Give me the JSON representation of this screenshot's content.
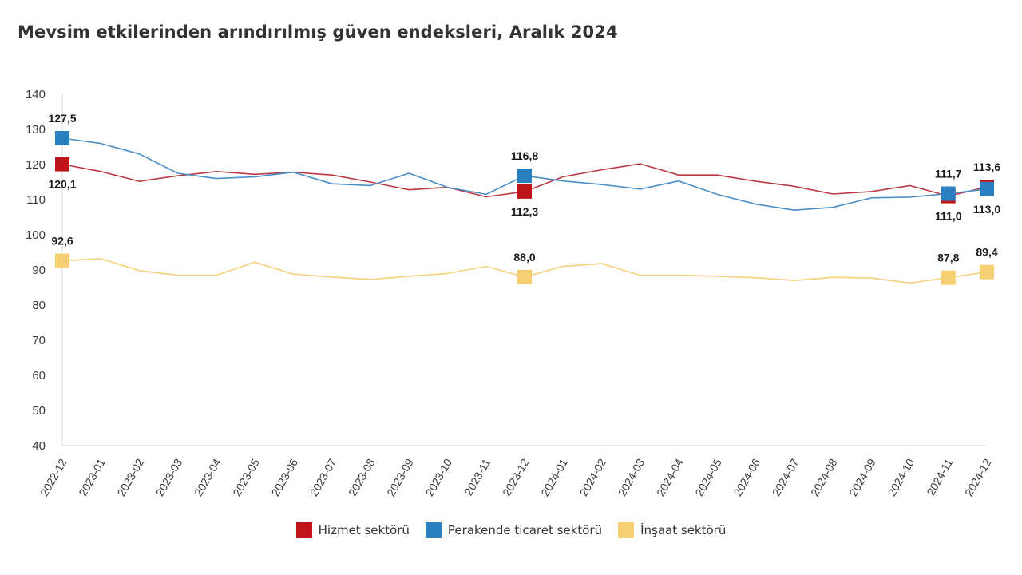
{
  "chart_data": {
    "type": "line",
    "title": "Mevsim etkilerinden arındırılmış güven endeksleri, Aralık 2024",
    "xlabel": "",
    "ylabel": "",
    "ylim": [
      40,
      140
    ],
    "yticks": [
      "40",
      "50",
      "60",
      "70",
      "80",
      "90",
      "100",
      "110",
      "120",
      "130",
      "140"
    ],
    "grid": false,
    "legend_position": "bottom-center",
    "categories": [
      "2022-12",
      "2023-01",
      "2023-02",
      "2023-03",
      "2023-04",
      "2023-05",
      "2023-06",
      "2023-07",
      "2023-08",
      "2023-09",
      "2023-10",
      "2023-11",
      "2023-12",
      "2024-01",
      "2024-02",
      "2024-03",
      "2024-04",
      "2024-05",
      "2024-06",
      "2024-07",
      "2024-08",
      "2024-09",
      "2024-10",
      "2024-11",
      "2024-12"
    ],
    "series": [
      {
        "name": "Hizmet sektörü",
        "color": "#c0141b",
        "line_color": "#b83b45",
        "values": [
          120.1,
          118.0,
          115.2,
          116.8,
          118.0,
          117.2,
          117.8,
          117.0,
          115.0,
          112.8,
          113.5,
          110.8,
          112.3,
          116.5,
          118.5,
          120.2,
          117.0,
          117.0,
          115.2,
          113.8,
          111.6,
          112.3,
          114.0,
          111.0,
          113.6
        ],
        "markers": [
          {
            "index": 0,
            "label": "120,1",
            "position": "below"
          },
          {
            "index": 12,
            "label": "112,3",
            "position": "below"
          },
          {
            "index": 23,
            "label": "111,0",
            "position": "below"
          },
          {
            "index": 24,
            "label": "113,6",
            "position": "above"
          }
        ]
      },
      {
        "name": "Perakende ticaret sektörü",
        "color": "#2a7fc1",
        "line_color": "#4a8fc8",
        "values": [
          127.5,
          126.0,
          123.0,
          117.5,
          116.0,
          116.5,
          117.8,
          114.5,
          114.0,
          117.5,
          113.5,
          111.5,
          116.8,
          115.3,
          114.3,
          113.0,
          115.3,
          111.5,
          108.7,
          107.0,
          107.8,
          110.5,
          110.7,
          111.7,
          113.0
        ],
        "markers": [
          {
            "index": 0,
            "label": "127,5",
            "position": "above"
          },
          {
            "index": 12,
            "label": "116,8",
            "position": "above"
          },
          {
            "index": 23,
            "label": "111,7",
            "position": "above"
          },
          {
            "index": 24,
            "label": "113,0",
            "position": "below"
          }
        ]
      },
      {
        "name": "İnşaat sektörü",
        "color": "#f6cf72",
        "line_color": "#f4d27c",
        "values": [
          92.6,
          93.2,
          89.8,
          88.5,
          88.5,
          92.2,
          88.8,
          88.0,
          87.3,
          88.2,
          89.0,
          91.0,
          88.0,
          91.0,
          91.8,
          88.5,
          88.5,
          88.2,
          87.8,
          87.0,
          87.9,
          87.7,
          86.3,
          87.8,
          89.4
        ],
        "markers": [
          {
            "index": 0,
            "label": "92,6",
            "position": "above"
          },
          {
            "index": 12,
            "label": "88,0",
            "position": "above"
          },
          {
            "index": 23,
            "label": "87,8",
            "position": "above"
          },
          {
            "index": 24,
            "label": "89,4",
            "position": "above"
          }
        ]
      }
    ]
  },
  "legend": {
    "items": [
      {
        "label": "Hizmet sektörü",
        "color": "#c0141b"
      },
      {
        "label": "Perakende ticaret sektörü",
        "color": "#2a7fc1"
      },
      {
        "label": "İnşaat sektörü",
        "color": "#f6cf72"
      }
    ]
  }
}
